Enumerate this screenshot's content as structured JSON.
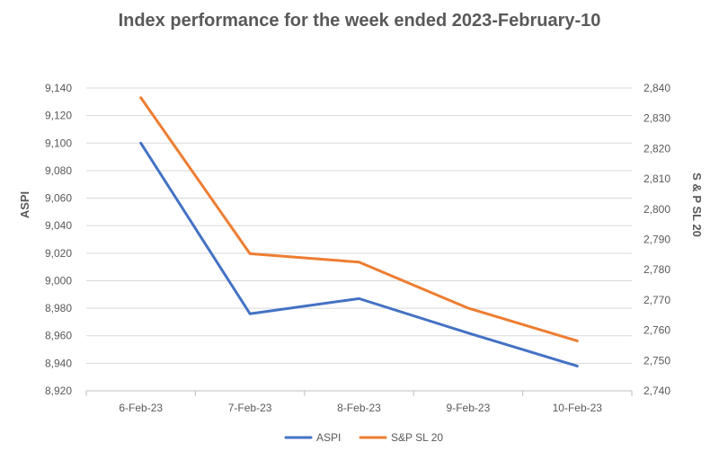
{
  "chart_data": {
    "type": "line",
    "title": "Index performance for the week ended 2023-February-10",
    "categories": [
      "6-Feb-23",
      "7-Feb-23",
      "8-Feb-23",
      "9-Feb-23",
      "10-Feb-23"
    ],
    "series": [
      {
        "name": "ASPI",
        "axis": "left",
        "color": "#4472C4",
        "values": [
          9100,
          8976,
          8987,
          8962,
          8938
        ]
      },
      {
        "name": "S&P SL 20",
        "axis": "right",
        "color": "#ED7D31",
        "values": [
          2836.8,
          2785.3,
          2782.5,
          2767.3,
          2756.5
        ]
      }
    ],
    "y_left": {
      "label": "ASPI",
      "ylim": [
        8920,
        9140
      ],
      "ticks": [
        "8,920",
        "8,940",
        "8,960",
        "8,980",
        "9,000",
        "9,020",
        "9,040",
        "9,060",
        "9,080",
        "9,100",
        "9,120",
        "9,140"
      ]
    },
    "y_right": {
      "label": "S & P SL 20",
      "ylim": [
        2740,
        2840
      ],
      "ticks": [
        "2,740",
        "2,750",
        "2,760",
        "2,770",
        "2,780",
        "2,790",
        "2,800",
        "2,810",
        "2,820",
        "2,830",
        "2,840"
      ]
    },
    "grid": true,
    "legend": "bottom"
  }
}
